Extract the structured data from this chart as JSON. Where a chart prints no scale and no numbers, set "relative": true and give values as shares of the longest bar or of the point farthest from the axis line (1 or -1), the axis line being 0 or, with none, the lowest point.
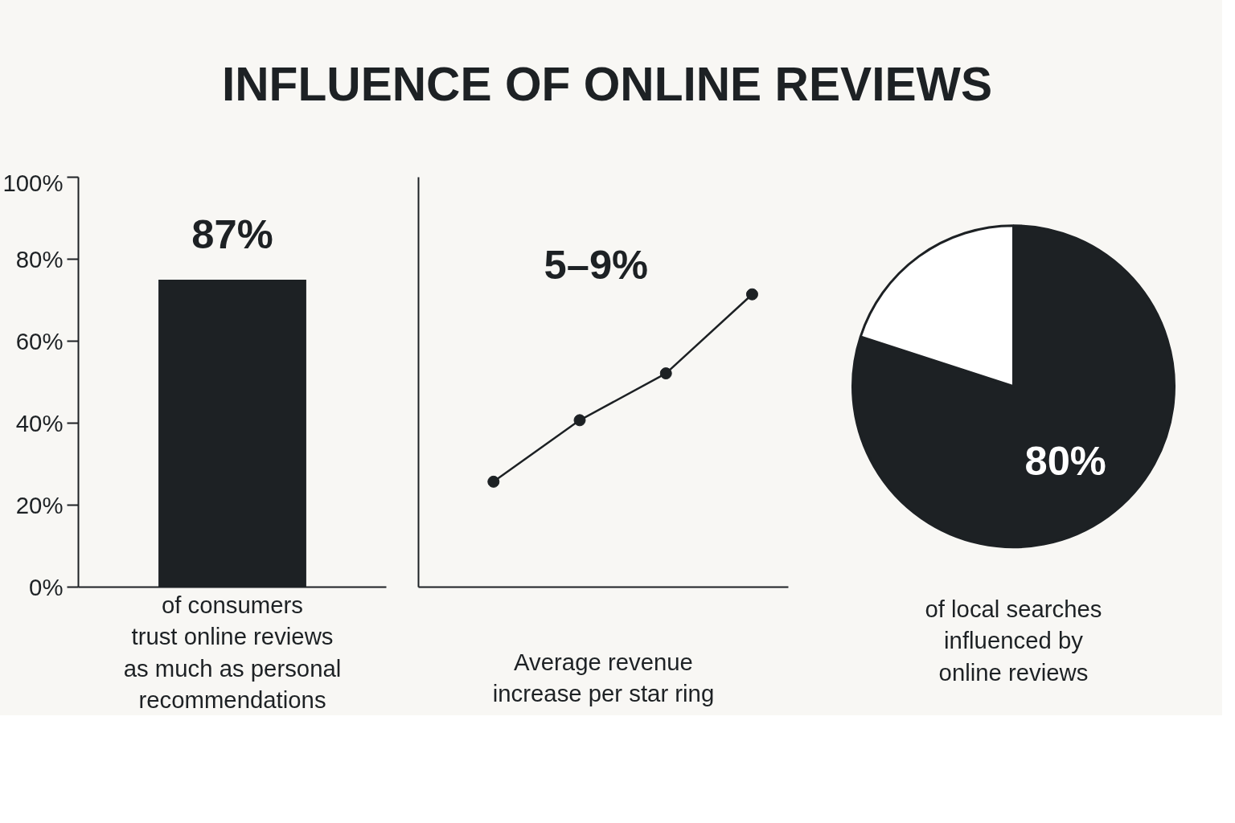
{
  "chart_data": [
    {
      "type": "bar",
      "title": "INFLUENCE OF ONLINE REVIEWS",
      "categories": [
        null
      ],
      "values": [
        75
      ],
      "color": "#1d2124",
      "ylim": [
        0,
        100
      ],
      "yticks": [
        {
          "value": 0,
          "label": "0%"
        },
        {
          "value": 20,
          "label": "20%"
        },
        {
          "value": 40,
          "label": "40%"
        },
        {
          "value": 60,
          "label": "60%"
        },
        {
          "value": 80,
          "label": "80%"
        },
        {
          "value": 100,
          "label": "100%"
        }
      ],
      "annotations": [
        "87%"
      ],
      "xlabel": "of consumers\ntrust online reviews\nas much as personal\nrecommendations",
      "grid": false
    },
    {
      "type": "line",
      "relative": true,
      "categories": [
        null,
        null,
        null,
        null
      ],
      "values": [
        0.36,
        0.57,
        0.73,
        1
      ],
      "color": "#1d2124",
      "marker": "circle",
      "annotations": [
        "5–9%"
      ],
      "xlabel": "Average revenue\nincrease per star ring",
      "grid": false
    },
    {
      "type": "pie",
      "categories": [
        null,
        null
      ],
      "values": [
        80,
        20
      ],
      "colors": [
        "#1d2124",
        "#ffffff"
      ],
      "value_labels": [
        "80%",
        null
      ],
      "xlabel": "of local searches\ninfluenced by\nonline reviews"
    }
  ]
}
